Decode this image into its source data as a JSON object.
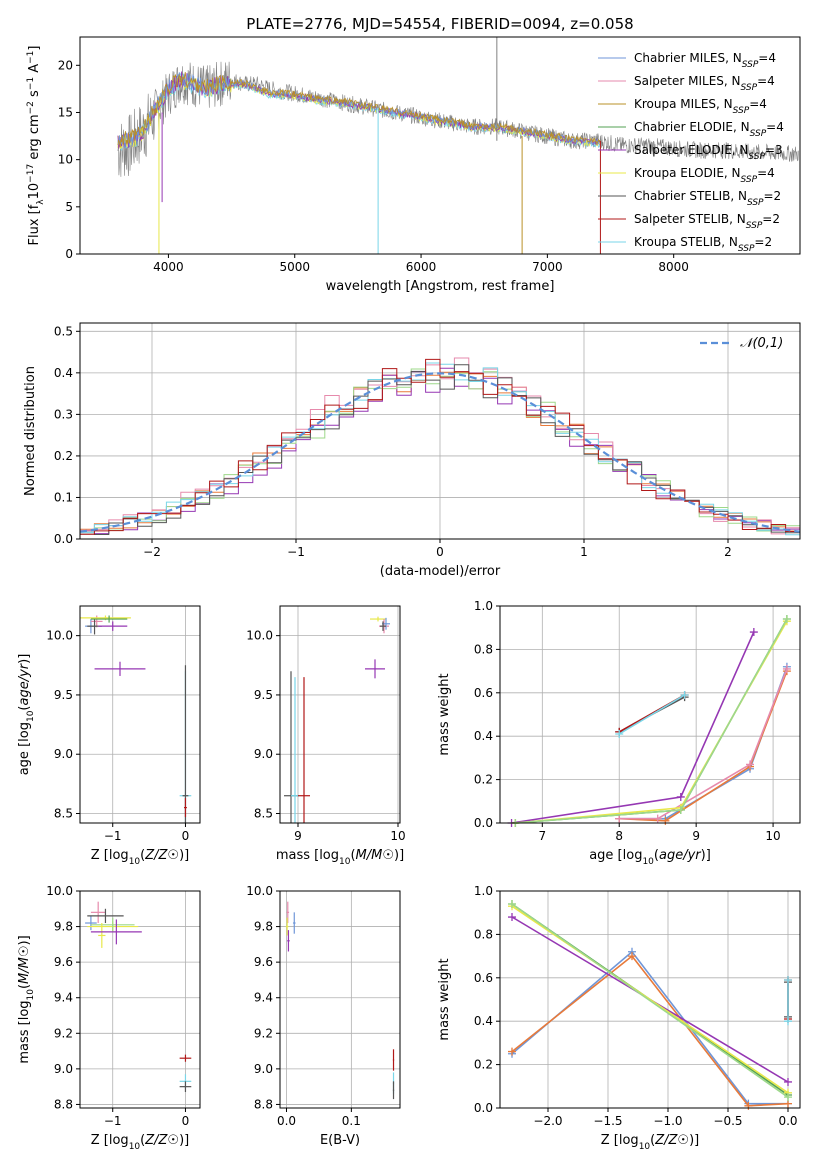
{
  "figure_title": "PLATE=2776, MJD=54554, FIBERID=0094, z=0.058",
  "colors": {
    "Chabrier MILES": "#6f96d8",
    "Salpeter MILES": "#e68aac",
    "Kroupa MILES": "#b99027",
    "Chabrier ELODIE": "#53a153",
    "Salpeter ELODIE": "#9537b3",
    "Kroupa ELODIE": "#e8e84a",
    "Chabrier STELIB": "#555555",
    "Salpeter STELIB": "#b01818",
    "Kroupa STELIB": "#79d6e8",
    "data": "#808080",
    "normal": "#5a8fd8",
    "extra_orange": "#e87a3a",
    "extra_green": "#9ed88a"
  },
  "chart_data": [
    {
      "id": "spectrum",
      "type": "line",
      "title": "PLATE=2776, MJD=54554, FIBERID=0094, z=0.058",
      "xlabel": "wavelength [Angstrom, rest frame]",
      "ylabel": "Flux [f_λ10^-17 erg cm^-2 s^-1 A^-1]",
      "xlim": [
        3300,
        9000
      ],
      "ylim": [
        0,
        23
      ],
      "xticks": [
        4000,
        5000,
        6000,
        7000,
        8000
      ],
      "yticks": [
        0,
        5,
        10,
        15,
        20
      ],
      "grid": false,
      "legend_position": "top-right",
      "legend": [
        {
          "name": "Chabrier MILES",
          "sub": "SSP",
          "value": "4"
        },
        {
          "name": "Salpeter MILES",
          "sub": "SSP",
          "value": "4"
        },
        {
          "name": "Kroupa MILES",
          "sub": "SSP",
          "value": "4"
        },
        {
          "name": "Chabrier ELODIE",
          "sub": "SSP",
          "value": "4"
        },
        {
          "name": "Salpeter ELODIE",
          "sub": "SSP",
          "value": "3"
        },
        {
          "name": "Kroupa ELODIE",
          "sub": "SSP",
          "value": "4"
        },
        {
          "name": "Chabrier STELIB",
          "sub": "SSP",
          "value": "2"
        },
        {
          "name": "Salpeter STELIB",
          "sub": "SSP",
          "value": "2"
        },
        {
          "name": "Kroupa STELIB",
          "sub": "SSP",
          "value": "2"
        }
      ],
      "data_continuum": [
        [
          3600,
          11
        ],
        [
          3700,
          11.5
        ],
        [
          3800,
          13
        ],
        [
          3900,
          15
        ],
        [
          4000,
          17
        ],
        [
          4100,
          18.5
        ],
        [
          4200,
          18
        ],
        [
          4300,
          17.5
        ],
        [
          4400,
          18
        ],
        [
          4500,
          18.5
        ],
        [
          4600,
          18
        ],
        [
          4700,
          18
        ],
        [
          4800,
          17.5
        ],
        [
          5000,
          17
        ],
        [
          5200,
          16.5
        ],
        [
          5400,
          16
        ],
        [
          5600,
          15.5
        ],
        [
          5800,
          15
        ],
        [
          6000,
          14.5
        ],
        [
          6200,
          14
        ],
        [
          6400,
          13.5
        ],
        [
          6600,
          13.5
        ],
        [
          6800,
          13
        ],
        [
          7000,
          12.5
        ],
        [
          7200,
          12
        ],
        [
          7400,
          12
        ],
        [
          7600,
          11.5
        ],
        [
          7800,
          11.5
        ],
        [
          8000,
          11.2
        ],
        [
          8200,
          11
        ],
        [
          8400,
          11
        ],
        [
          8600,
          10.8
        ],
        [
          8800,
          10.7
        ],
        [
          8990,
          10.6
        ]
      ],
      "model_continuum": [
        [
          3600,
          12
        ],
        [
          3700,
          12
        ],
        [
          3800,
          13
        ],
        [
          3900,
          15.5
        ],
        [
          4000,
          17.5
        ],
        [
          4100,
          18.5
        ],
        [
          4200,
          18
        ],
        [
          4300,
          17.5
        ],
        [
          4400,
          18
        ],
        [
          4500,
          18
        ],
        [
          4600,
          18
        ],
        [
          4700,
          17.5
        ],
        [
          4800,
          17
        ],
        [
          5000,
          16.8
        ],
        [
          5200,
          16.3
        ],
        [
          5400,
          16
        ],
        [
          5600,
          15.5
        ],
        [
          5800,
          15
        ],
        [
          6000,
          14.5
        ],
        [
          6200,
          14
        ],
        [
          6400,
          13.5
        ],
        [
          6600,
          13.4
        ],
        [
          6800,
          13
        ],
        [
          7000,
          12.5
        ],
        [
          7200,
          12
        ],
        [
          7420,
          11.8
        ]
      ],
      "spikes": [
        {
          "x": 3925,
          "min": 0,
          "max": 15,
          "series": "Kroupa ELODIE"
        },
        {
          "x": 3950,
          "min": 5.5,
          "max": 15,
          "series": "Salpeter ELODIE"
        },
        {
          "x": 5660,
          "min": 0,
          "max": 15.5,
          "series": "Kroupa STELIB"
        },
        {
          "x": 6600,
          "min": 12,
          "max": 23,
          "series": "data"
        },
        {
          "x": 6800,
          "min": 0,
          "max": 12.5,
          "series": "Kroupa MILES"
        },
        {
          "x": 7420,
          "min": 0,
          "max": 12,
          "series": "Salpeter STELIB"
        }
      ]
    },
    {
      "id": "residuals",
      "type": "step",
      "xlabel": "(data-model)/error",
      "ylabel": "Normed distribution",
      "xlim": [
        -2.5,
        2.5
      ],
      "ylim": [
        0,
        0.52
      ],
      "xticks": [
        -2,
        -1,
        0,
        1,
        2
      ],
      "yticks": [
        0.0,
        0.1,
        0.2,
        0.3,
        0.4,
        0.5
      ],
      "grid": true,
      "legend_position": "top-right",
      "legend": [
        {
          "name": "𝒩(0,1)"
        }
      ],
      "bin_width": 0.1,
      "series": [
        {
          "color": "#e87a3a",
          "offset": 0.0,
          "amp": 1.0
        },
        {
          "color": "#9537b3",
          "offset": 0.02,
          "amp": 0.97
        },
        {
          "color": "#e68aac",
          "offset": -0.02,
          "amp": 1.03
        },
        {
          "color": "#9ed88a",
          "offset": 0.01,
          "amp": 0.99
        },
        {
          "color": "#79d6e8",
          "offset": -0.01,
          "amp": 1.01
        },
        {
          "color": "#555555",
          "offset": 0.015,
          "amp": 0.98
        },
        {
          "color": "#b01818",
          "offset": -0.015,
          "amp": 1.0
        }
      ]
    },
    {
      "id": "age-vs-z",
      "type": "scatter",
      "xlabel": "Z [log10(Z/Z☉)]",
      "ylabel": "age [log10(age/yr)]",
      "xlim": [
        -1.45,
        0.2
      ],
      "ylim": [
        8.42,
        10.25
      ],
      "xticks": [
        -1,
        0
      ],
      "yticks": [
        8.5,
        9.0,
        9.5,
        10.0
      ],
      "grid": true,
      "points": [
        {
          "x": -1.3,
          "y": 10.08,
          "ex": 0.08,
          "ey": 0.06,
          "c": "#6f96d8"
        },
        {
          "x": -1.22,
          "y": 10.12,
          "ex": 0.08,
          "ey": 0.05,
          "c": "#e68aac"
        },
        {
          "x": -1.25,
          "y": 10.08,
          "ex": 0.1,
          "ey": 0.07,
          "c": "#555555"
        },
        {
          "x": -1.1,
          "y": 10.15,
          "ex": 0.35,
          "ey": 0.02,
          "c": "#e8e84a"
        },
        {
          "x": -1.05,
          "y": 10.14,
          "ex": 0.25,
          "ey": 0.03,
          "c": "#53a153"
        },
        {
          "x": -1.0,
          "y": 10.08,
          "ex": 0.2,
          "ey": 0.04,
          "c": "#9537b3"
        },
        {
          "x": -0.9,
          "y": 9.72,
          "ex": 0.35,
          "ey": 0.06,
          "c": "#9537b3"
        },
        {
          "x": 0.0,
          "y": 8.65,
          "ex": 0.08,
          "ey": 1.05,
          "c": "#79d6e8"
        },
        {
          "x": 0.0,
          "y": 8.65,
          "ex": 0.04,
          "ey": 1.1,
          "c": "#555555"
        },
        {
          "x": 0.0,
          "y": 8.55,
          "ex": 0.02,
          "ey": 0.08,
          "c": "#b01818"
        }
      ]
    },
    {
      "id": "age-vs-mass",
      "type": "scatter",
      "xlabel": "mass [log10(M/M☉)]",
      "ylabel": "",
      "xlim": [
        8.82,
        10.02
      ],
      "ylim": [
        8.42,
        10.25
      ],
      "xticks": [
        9,
        10
      ],
      "yticks": [
        8.5,
        9.0,
        9.5,
        10.0
      ],
      "grid": true,
      "points": [
        {
          "x": 9.8,
          "y": 10.14,
          "ex": 0.08,
          "ey": 0.02,
          "c": "#e8e84a"
        },
        {
          "x": 9.86,
          "y": 10.08,
          "ex": 0.05,
          "ey": 0.06,
          "c": "#e68aac"
        },
        {
          "x": 9.88,
          "y": 10.1,
          "ex": 0.04,
          "ey": 0.05,
          "c": "#6f96d8"
        },
        {
          "x": 9.85,
          "y": 10.08,
          "ex": 0.03,
          "ey": 0.04,
          "c": "#555555"
        },
        {
          "x": 9.77,
          "y": 9.72,
          "ex": 0.1,
          "ey": 0.08,
          "c": "#9537b3"
        },
        {
          "x": 8.93,
          "y": 8.65,
          "ex": 0.07,
          "ey": 1.05,
          "c": "#555555"
        },
        {
          "x": 8.97,
          "y": 8.65,
          "ex": 0.04,
          "ey": 1.0,
          "c": "#79d6e8"
        },
        {
          "x": 9.06,
          "y": 8.65,
          "ex": 0.06,
          "ey": 1.0,
          "c": "#b01818"
        }
      ]
    },
    {
      "id": "weight-vs-age",
      "type": "line",
      "xlabel": "age [log10(age/yr)]",
      "ylabel": "mass weight",
      "xlim": [
        6.45,
        10.35
      ],
      "ylim": [
        0,
        1.0
      ],
      "xticks": [
        7,
        8,
        9,
        10
      ],
      "yticks": [
        0.0,
        0.2,
        0.4,
        0.6,
        0.8,
        1.0
      ],
      "grid": true,
      "series": [
        {
          "c": "#6f96d8",
          "x": [
            8.0,
            8.6,
            9.7,
            10.18
          ],
          "y": [
            0.02,
            0.02,
            0.25,
            0.72
          ]
        },
        {
          "c": "#e87a3a",
          "x": [
            8.0,
            8.6,
            9.7,
            10.18
          ],
          "y": [
            0.02,
            0.01,
            0.26,
            0.7
          ]
        },
        {
          "c": "#e68aac",
          "x": [
            8.0,
            8.5,
            9.7,
            10.18
          ],
          "y": [
            0.02,
            0.02,
            0.27,
            0.71
          ]
        },
        {
          "c": "#9537b3",
          "x": [
            6.6,
            8.8,
            9.75
          ],
          "y": [
            0.0,
            0.12,
            0.88
          ]
        },
        {
          "c": "#53a153",
          "x": [
            6.65,
            8.8,
            10.18
          ],
          "y": [
            0.0,
            0.06,
            0.94
          ]
        },
        {
          "c": "#e8e84a",
          "x": [
            6.65,
            8.8,
            10.18
          ],
          "y": [
            0.0,
            0.07,
            0.93
          ]
        },
        {
          "c": "#9ed88a",
          "x": [
            6.65,
            8.8,
            10.18
          ],
          "y": [
            0.0,
            0.06,
            0.94
          ]
        },
        {
          "c": "#555555",
          "x": [
            8.0,
            8.85
          ],
          "y": [
            0.42,
            0.58
          ]
        },
        {
          "c": "#b01818",
          "x": [
            8.0,
            8.85
          ],
          "y": [
            0.42,
            0.59
          ]
        },
        {
          "c": "#79d6e8",
          "x": [
            8.0,
            8.85
          ],
          "y": [
            0.41,
            0.59
          ]
        }
      ]
    },
    {
      "id": "mass-vs-z",
      "type": "scatter",
      "xlabel": "Z [log10(Z/Z☉)]",
      "ylabel": "mass [log10(M/M☉)]",
      "xlim": [
        -1.45,
        0.2
      ],
      "ylim": [
        8.78,
        10.0
      ],
      "xticks": [
        -1,
        0
      ],
      "yticks": [
        8.8,
        9.0,
        9.2,
        9.4,
        9.6,
        9.8,
        10.0
      ],
      "grid": true,
      "points": [
        {
          "x": -1.3,
          "y": 9.82,
          "ex": 0.08,
          "ey": 0.04,
          "c": "#6f96d8"
        },
        {
          "x": -1.2,
          "y": 9.88,
          "ex": 0.1,
          "ey": 0.06,
          "c": "#e68aac"
        },
        {
          "x": -1.1,
          "y": 9.86,
          "ex": 0.25,
          "ey": 0.04,
          "c": "#555555"
        },
        {
          "x": -1.0,
          "y": 9.8,
          "ex": 0.35,
          "ey": 0.03,
          "c": "#e8e84a"
        },
        {
          "x": -1.0,
          "y": 9.81,
          "ex": 0.3,
          "ey": 0.04,
          "c": "#9ed88a"
        },
        {
          "x": -1.15,
          "y": 9.75,
          "ex": 0.05,
          "ey": 0.07,
          "c": "#e8e84a"
        },
        {
          "x": -0.95,
          "y": 9.77,
          "ex": 0.35,
          "ey": 0.07,
          "c": "#9537b3"
        },
        {
          "x": 0.0,
          "y": 9.06,
          "ex": 0.08,
          "ey": 0.02,
          "c": "#b01818"
        },
        {
          "x": 0.0,
          "y": 8.93,
          "ex": 0.08,
          "ey": 0.04,
          "c": "#79d6e8"
        },
        {
          "x": 0.0,
          "y": 8.9,
          "ex": 0.08,
          "ey": 0.03,
          "c": "#555555"
        }
      ]
    },
    {
      "id": "mass-vs-ebv",
      "type": "scatter",
      "xlabel": "E(B-V)",
      "ylabel": "",
      "xlim": [
        -0.01,
        0.175
      ],
      "ylim": [
        8.78,
        10.0
      ],
      "xticks": [
        0.0,
        0.1
      ],
      "yticks": [
        8.8,
        9.0,
        9.2,
        9.4,
        9.6,
        9.8,
        10.0
      ],
      "grid": true,
      "points": [
        {
          "x": 0.002,
          "y": 9.88,
          "ex": 0.002,
          "ey": 0.06,
          "c": "#e68aac"
        },
        {
          "x": 0.001,
          "y": 9.8,
          "ex": 0.002,
          "ey": 0.05,
          "c": "#e8e84a"
        },
        {
          "x": 0.012,
          "y": 9.82,
          "ex": 0.002,
          "ey": 0.06,
          "c": "#6f96d8"
        },
        {
          "x": 0.003,
          "y": 9.72,
          "ex": 0.002,
          "ey": 0.06,
          "c": "#9537b3"
        },
        {
          "x": 0.165,
          "y": 9.05,
          "ex": 0.001,
          "ey": 0.06,
          "c": "#b01818"
        },
        {
          "x": 0.165,
          "y": 8.92,
          "ex": 0.001,
          "ey": 0.06,
          "c": "#79d6e8"
        },
        {
          "x": 0.165,
          "y": 8.88,
          "ex": 0.001,
          "ey": 0.05,
          "c": "#555555"
        }
      ]
    },
    {
      "id": "weight-vs-z",
      "type": "line",
      "xlabel": "Z [log10(Z/Z☉)]",
      "ylabel": "mass weight",
      "xlim": [
        -2.4,
        0.1
      ],
      "ylim": [
        0,
        1.0
      ],
      "xticks": [
        -2.0,
        -1.5,
        -1.0,
        -0.5,
        0.0
      ],
      "yticks": [
        0.0,
        0.2,
        0.4,
        0.6,
        0.8,
        1.0
      ],
      "grid": true,
      "series": [
        {
          "c": "#6f96d8",
          "x": [
            -2.3,
            -1.3,
            -0.33,
            0.0
          ],
          "y": [
            0.25,
            0.72,
            0.02,
            0.02
          ]
        },
        {
          "c": "#e87a3a",
          "x": [
            -2.3,
            -1.3,
            -0.33,
            0.0
          ],
          "y": [
            0.26,
            0.7,
            0.01,
            0.02
          ]
        },
        {
          "c": "#9537b3",
          "x": [
            -2.3,
            0.0
          ],
          "y": [
            0.88,
            0.12
          ]
        },
        {
          "c": "#53a153",
          "x": [
            -2.3,
            0.0
          ],
          "y": [
            0.94,
            0.06
          ]
        },
        {
          "c": "#e8e84a",
          "x": [
            -2.3,
            0.0
          ],
          "y": [
            0.93,
            0.07
          ]
        },
        {
          "c": "#9ed88a",
          "x": [
            -2.3,
            0.0
          ],
          "y": [
            0.94,
            0.05
          ]
        },
        {
          "c": "#555555",
          "x": [
            0.0,
            0.0
          ],
          "y": [
            0.42,
            0.58
          ]
        },
        {
          "c": "#b01818",
          "x": [
            0.0,
            0.0
          ],
          "y": [
            0.41,
            0.59
          ]
        },
        {
          "c": "#79d6e8",
          "x": [
            0.0,
            0.0
          ],
          "y": [
            0.4,
            0.59
          ]
        }
      ]
    }
  ]
}
